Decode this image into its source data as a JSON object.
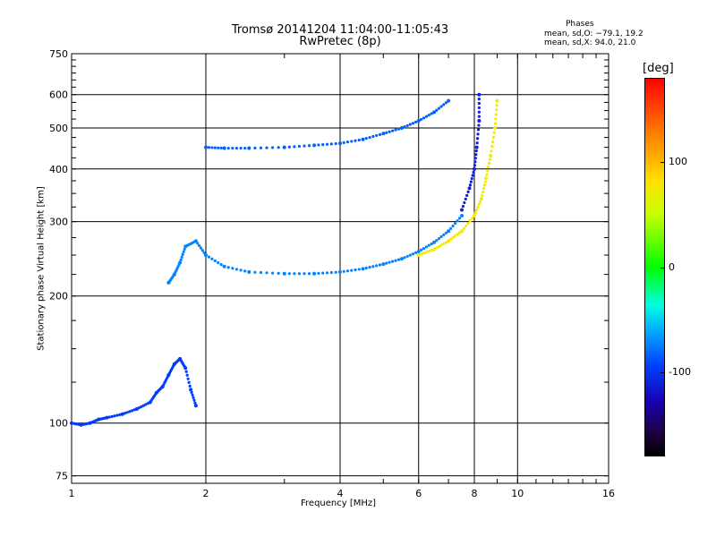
{
  "chart_data": {
    "type": "scatter",
    "title": "Tromsø 20141204 11:04:00-11:05:43",
    "subtitle": "RwPretec (8p)",
    "xlabel": "Frequency [MHz]",
    "ylabel": "Stationary phase Virtual Height [km]",
    "x_scale": "log",
    "y_scale": "log",
    "xlim": [
      1,
      16
    ],
    "ylim": [
      72,
      750
    ],
    "x_ticks": [
      1,
      2,
      4,
      6,
      8,
      10,
      16
    ],
    "y_ticks": [
      75,
      100,
      200,
      300,
      400,
      500,
      600,
      750
    ],
    "grid": true,
    "stats": {
      "heading": "Phases",
      "o_line": "mean, sd,O: −79.1, 19.2",
      "x_line": "mean, sd,X:  94.0, 21.0"
    },
    "colorbar": {
      "label": "[deg]",
      "ticks": [
        "100",
        "0",
        "-100"
      ],
      "tick_values": [
        100,
        0,
        -100
      ],
      "range": [
        -180,
        180
      ]
    },
    "series": [
      {
        "name": "",
        "color_phase": -80,
        "x": [
          1.0,
          1.05,
          1.1,
          1.15,
          1.2,
          1.3,
          1.4,
          1.5,
          1.55,
          1.6,
          1.65,
          1.7,
          1.75,
          1.8,
          1.85,
          1.9
        ],
        "y": [
          100,
          99,
          100,
          102,
          103,
          105,
          108,
          112,
          118,
          122,
          130,
          138,
          142,
          135,
          120,
          110
        ]
      },
      {
        "name": "",
        "color_phase": -60,
        "x": [
          1.65,
          1.7,
          1.75,
          1.8,
          1.9,
          2.0,
          2.2,
          2.5,
          3.0,
          3.5,
          4.0,
          4.5,
          5.0,
          5.5,
          6.0,
          6.5,
          7.0,
          7.5
        ],
        "y": [
          215,
          225,
          240,
          262,
          270,
          250,
          235,
          228,
          226,
          226,
          228,
          232,
          238,
          245,
          255,
          268,
          285,
          310
        ]
      },
      {
        "name": "",
        "color_phase": -70,
        "x": [
          2.0,
          2.2,
          2.5,
          3.0,
          3.5,
          4.0,
          4.5,
          5.0,
          5.5,
          6.0,
          6.5,
          7.0
        ],
        "y": [
          450,
          448,
          448,
          450,
          455,
          460,
          470,
          485,
          500,
          520,
          545,
          580
        ]
      },
      {
        "name": "",
        "color_phase": 90,
        "x": [
          6.0,
          6.5,
          7.0,
          7.5,
          8.0,
          8.3,
          8.5,
          8.7,
          8.9,
          9.0
        ],
        "y": [
          250,
          258,
          270,
          285,
          310,
          340,
          380,
          430,
          500,
          580
        ]
      },
      {
        "name": "",
        "color_phase": -95,
        "x": [
          7.5,
          7.8,
          8.0,
          8.1,
          8.2,
          8.2
        ],
        "y": [
          320,
          360,
          400,
          450,
          520,
          600
        ]
      }
    ]
  }
}
